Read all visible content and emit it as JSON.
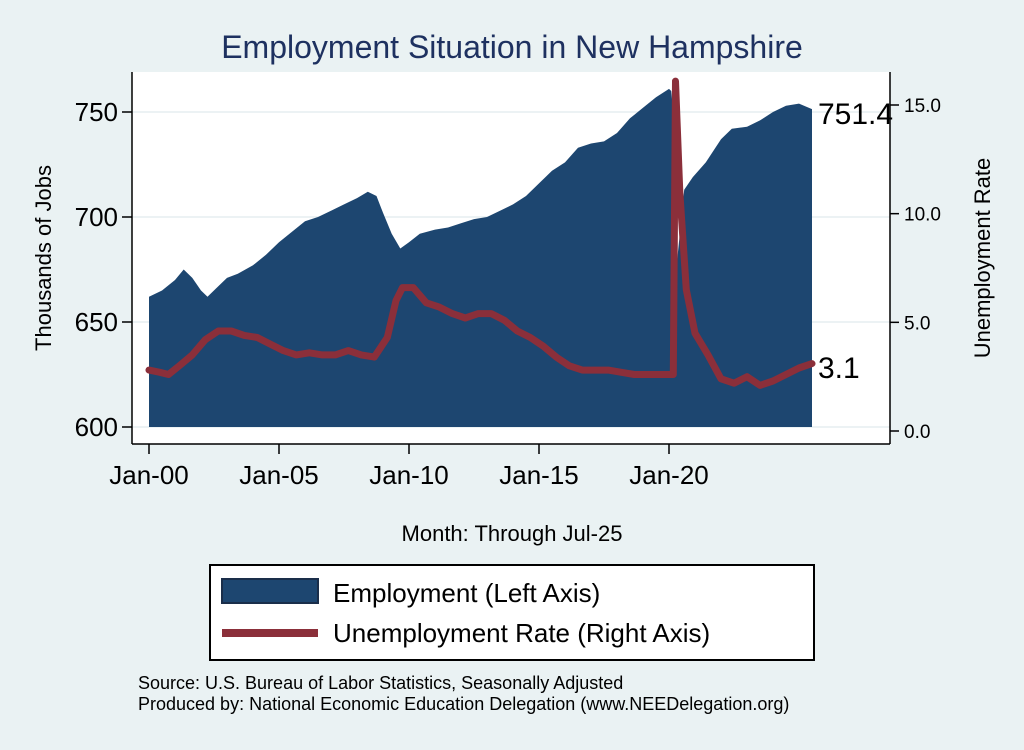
{
  "chart_data": {
    "type": "area",
    "title": "Employment Situation in New Hampshire",
    "xlabel": "Month: Through Jul-25",
    "ylabel_left": "Thousands of Jobs",
    "ylabel_right": "Unemployment Rate",
    "x_ticks": [
      "Jan-00",
      "Jan-05",
      "Jan-10",
      "Jan-15",
      "Jan-20"
    ],
    "y_left_ticks": [
      "600",
      "650",
      "700",
      "750"
    ],
    "y_right_ticks": [
      "0.0",
      "5.0",
      "10.0",
      "15.0"
    ],
    "y_left_range": [
      600,
      770
    ],
    "y_right_range": [
      0,
      16
    ],
    "x_range": [
      "2000-01",
      "2025-07"
    ],
    "grid": "horizontal",
    "series": [
      {
        "name": "Employment (Left Axis)",
        "axis": "left",
        "kind": "area",
        "color": "#1d4670",
        "points": [
          [
            "2000-01",
            662
          ],
          [
            "2000-07",
            665
          ],
          [
            "2001-01",
            670
          ],
          [
            "2001-05",
            675
          ],
          [
            "2001-09",
            671
          ],
          [
            "2002-01",
            665
          ],
          [
            "2002-04",
            662
          ],
          [
            "2002-09",
            667
          ],
          [
            "2003-01",
            671
          ],
          [
            "2003-06",
            673
          ],
          [
            "2004-01",
            677
          ],
          [
            "2004-07",
            682
          ],
          [
            "2005-01",
            688
          ],
          [
            "2005-07",
            693
          ],
          [
            "2006-01",
            698
          ],
          [
            "2006-07",
            700
          ],
          [
            "2007-01",
            703
          ],
          [
            "2007-07",
            706
          ],
          [
            "2008-01",
            709
          ],
          [
            "2008-06",
            712
          ],
          [
            "2008-10",
            710
          ],
          [
            "2009-01",
            702
          ],
          [
            "2009-05",
            692
          ],
          [
            "2009-09",
            685
          ],
          [
            "2010-01",
            688
          ],
          [
            "2010-06",
            692
          ],
          [
            "2011-01",
            694
          ],
          [
            "2011-07",
            695
          ],
          [
            "2012-01",
            697
          ],
          [
            "2012-07",
            699
          ],
          [
            "2013-01",
            700
          ],
          [
            "2013-07",
            703
          ],
          [
            "2014-01",
            706
          ],
          [
            "2014-07",
            710
          ],
          [
            "2015-01",
            716
          ],
          [
            "2015-07",
            722
          ],
          [
            "2016-01",
            726
          ],
          [
            "2016-07",
            733
          ],
          [
            "2017-01",
            735
          ],
          [
            "2017-07",
            736
          ],
          [
            "2018-01",
            740
          ],
          [
            "2018-07",
            747
          ],
          [
            "2019-01",
            752
          ],
          [
            "2019-07",
            757
          ],
          [
            "2020-01",
            761
          ],
          [
            "2020-02",
            760
          ],
          [
            "2020-03",
            750
          ],
          [
            "2020-04",
            660
          ],
          [
            "2020-05",
            682
          ],
          [
            "2020-08",
            713
          ],
          [
            "2020-12",
            719
          ],
          [
            "2021-06",
            726
          ],
          [
            "2022-01",
            737
          ],
          [
            "2022-06",
            742
          ],
          [
            "2023-01",
            743
          ],
          [
            "2023-07",
            746
          ],
          [
            "2024-01",
            750
          ],
          [
            "2024-07",
            753
          ],
          [
            "2025-01",
            754
          ],
          [
            "2025-07",
            751.4
          ]
        ]
      },
      {
        "name": "Unemployment Rate (Right Axis)",
        "axis": "right",
        "kind": "line",
        "color": "#8b2f3a",
        "points": [
          [
            "2000-01",
            2.8
          ],
          [
            "2000-06",
            2.7
          ],
          [
            "2000-10",
            2.6
          ],
          [
            "2001-03",
            3.0
          ],
          [
            "2001-09",
            3.5
          ],
          [
            "2002-03",
            4.2
          ],
          [
            "2002-09",
            4.6
          ],
          [
            "2003-03",
            4.6
          ],
          [
            "2003-09",
            4.4
          ],
          [
            "2004-03",
            4.3
          ],
          [
            "2004-09",
            4.0
          ],
          [
            "2005-03",
            3.7
          ],
          [
            "2005-09",
            3.5
          ],
          [
            "2006-03",
            3.6
          ],
          [
            "2006-09",
            3.5
          ],
          [
            "2007-03",
            3.5
          ],
          [
            "2007-09",
            3.7
          ],
          [
            "2008-03",
            3.5
          ],
          [
            "2008-09",
            3.4
          ],
          [
            "2009-03",
            4.3
          ],
          [
            "2009-07",
            6.0
          ],
          [
            "2009-10",
            6.6
          ],
          [
            "2010-03",
            6.6
          ],
          [
            "2010-09",
            5.9
          ],
          [
            "2011-03",
            5.7
          ],
          [
            "2011-09",
            5.4
          ],
          [
            "2012-03",
            5.2
          ],
          [
            "2012-09",
            5.4
          ],
          [
            "2013-03",
            5.4
          ],
          [
            "2013-09",
            5.1
          ],
          [
            "2014-03",
            4.6
          ],
          [
            "2014-09",
            4.3
          ],
          [
            "2015-03",
            3.9
          ],
          [
            "2015-09",
            3.4
          ],
          [
            "2016-03",
            3.0
          ],
          [
            "2016-09",
            2.8
          ],
          [
            "2017-03",
            2.8
          ],
          [
            "2017-09",
            2.8
          ],
          [
            "2018-03",
            2.7
          ],
          [
            "2018-09",
            2.6
          ],
          [
            "2019-03",
            2.6
          ],
          [
            "2019-09",
            2.6
          ],
          [
            "2020-03",
            2.6
          ],
          [
            "2020-04",
            16.1
          ],
          [
            "2020-06",
            11.0
          ],
          [
            "2020-09",
            6.5
          ],
          [
            "2021-01",
            4.5
          ],
          [
            "2021-07",
            3.5
          ],
          [
            "2022-01",
            2.4
          ],
          [
            "2022-07",
            2.2
          ],
          [
            "2023-01",
            2.5
          ],
          [
            "2023-07",
            2.1
          ],
          [
            "2024-01",
            2.3
          ],
          [
            "2024-07",
            2.6
          ],
          [
            "2025-01",
            2.9
          ],
          [
            "2025-07",
            3.1
          ]
        ]
      }
    ],
    "end_labels": {
      "employment": "751.4",
      "unemployment": "3.1"
    },
    "legend": {
      "placement": "bottom",
      "items": [
        {
          "label": "Employment (Left Axis)",
          "swatch": "area"
        },
        {
          "label": "Unemployment Rate (Right Axis)",
          "swatch": "line"
        }
      ]
    },
    "colors": {
      "background": "#eaf2f3",
      "plot_background": "#ffffff",
      "title": "#1e3160",
      "employment_fill": "#1d4670",
      "unemployment_line": "#8b2f3a"
    }
  },
  "footer": {
    "source": "Source: U.S. Bureau of Labor Statistics, Seasonally Adjusted",
    "produced_by": "Produced by: National Economic Education Delegation (www.NEEDelegation.org)"
  }
}
